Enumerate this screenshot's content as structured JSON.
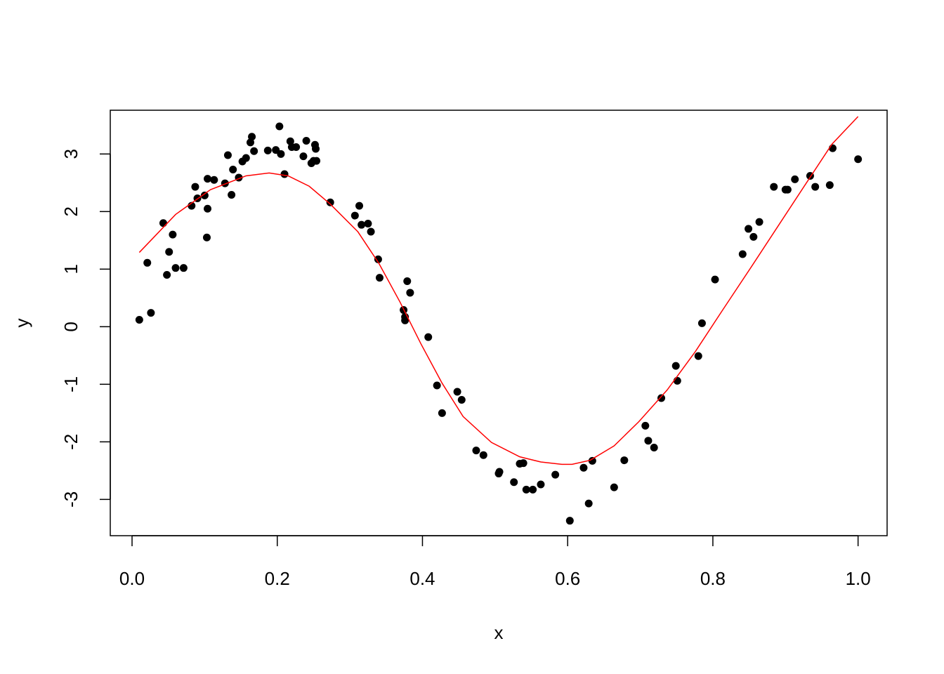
{
  "chart_data": {
    "type": "scatter",
    "x_label": "x",
    "y_label": "y",
    "xlim": [
      -0.03,
      1.04
    ],
    "ylim": [
      -3.63,
      3.76
    ],
    "xticks": [
      {
        "value": 0,
        "label": "0.0"
      },
      {
        "value": 0.2,
        "label": "0.2"
      },
      {
        "value": 0.4,
        "label": "0.4"
      },
      {
        "value": 0.6,
        "label": "0.6"
      },
      {
        "value": 0.8,
        "label": "0.8"
      },
      {
        "value": 1,
        "label": "1.0"
      }
    ],
    "yticks": [
      -3,
      -2,
      -1,
      0,
      1,
      2,
      3
    ],
    "series": [
      {
        "type": "scatter",
        "color": "#000000",
        "x": [
          0.01,
          0.021,
          0.026,
          0.043,
          0.048,
          0.051,
          0.056,
          0.06,
          0.071,
          0.082,
          0.087,
          0.09,
          0.1,
          0.103,
          0.104,
          0.104,
          0.113,
          0.128,
          0.132,
          0.137,
          0.139,
          0.147,
          0.152,
          0.157,
          0.163,
          0.165,
          0.168,
          0.187,
          0.198,
          0.203,
          0.205,
          0.21,
          0.218,
          0.22,
          0.226,
          0.236,
          0.24,
          0.247,
          0.25,
          0.252,
          0.253,
          0.254,
          0.273,
          0.307,
          0.313,
          0.316,
          0.325,
          0.329,
          0.339,
          0.341,
          0.374,
          0.376,
          0.376,
          0.379,
          0.383,
          0.408,
          0.42,
          0.427,
          0.448,
          0.454,
          0.474,
          0.484,
          0.505,
          0.506,
          0.526,
          0.534,
          0.539,
          0.543,
          0.552,
          0.563,
          0.583,
          0.603,
          0.622,
          0.629,
          0.634,
          0.664,
          0.678,
          0.707,
          0.711,
          0.719,
          0.729,
          0.749,
          0.751,
          0.78,
          0.785,
          0.803,
          0.841,
          0.849,
          0.856,
          0.864,
          0.884,
          0.9,
          0.903,
          0.913,
          0.934,
          0.941,
          0.961,
          0.965,
          1.0
        ],
        "values": [
          0.12,
          1.11,
          0.24,
          1.8,
          0.9,
          1.3,
          1.6,
          1.02,
          1.02,
          2.1,
          2.43,
          2.23,
          2.28,
          1.55,
          2.57,
          2.05,
          2.55,
          2.49,
          2.98,
          2.29,
          2.73,
          2.59,
          2.87,
          2.93,
          3.2,
          3.3,
          3.05,
          3.06,
          3.07,
          3.48,
          3.0,
          2.65,
          3.22,
          3.12,
          3.12,
          2.96,
          3.23,
          2.84,
          2.88,
          3.16,
          3.09,
          2.88,
          2.16,
          1.93,
          2.1,
          1.77,
          1.79,
          1.65,
          1.17,
          0.85,
          0.29,
          0.17,
          0.11,
          0.79,
          0.59,
          -0.18,
          -1.02,
          -1.5,
          -1.13,
          -1.27,
          -2.15,
          -2.23,
          -2.55,
          -2.52,
          -2.7,
          -2.38,
          -2.37,
          -2.83,
          -2.83,
          -2.74,
          -2.57,
          -3.37,
          -2.45,
          -3.07,
          -2.33,
          -2.79,
          -2.32,
          -1.72,
          -1.98,
          -2.1,
          -1.24,
          -0.68,
          -0.94,
          -0.51,
          0.06,
          0.82,
          1.26,
          1.7,
          1.56,
          1.82,
          2.43,
          2.38,
          2.38,
          2.56,
          2.62,
          2.43,
          2.46,
          3.1,
          2.91
        ]
      },
      {
        "type": "line",
        "color": "#ff0000",
        "x": [
          0.01,
          0.06,
          0.108,
          0.157,
          0.189,
          0.215,
          0.244,
          0.273,
          0.311,
          0.34,
          0.369,
          0.398,
          0.427,
          0.456,
          0.495,
          0.534,
          0.563,
          0.592,
          0.606,
          0.631,
          0.664,
          0.698,
          0.737,
          0.776,
          0.814,
          0.853,
          0.892,
          0.93,
          0.964,
          1.0
        ],
        "values": [
          1.29,
          1.95,
          2.38,
          2.62,
          2.67,
          2.62,
          2.44,
          2.13,
          1.65,
          1.1,
          0.43,
          -0.3,
          -0.98,
          -1.56,
          -2.01,
          -2.26,
          -2.35,
          -2.39,
          -2.39,
          -2.32,
          -2.07,
          -1.65,
          -1.1,
          -0.43,
          0.3,
          1.04,
          1.79,
          2.52,
          3.17,
          3.65
        ]
      }
    ]
  }
}
